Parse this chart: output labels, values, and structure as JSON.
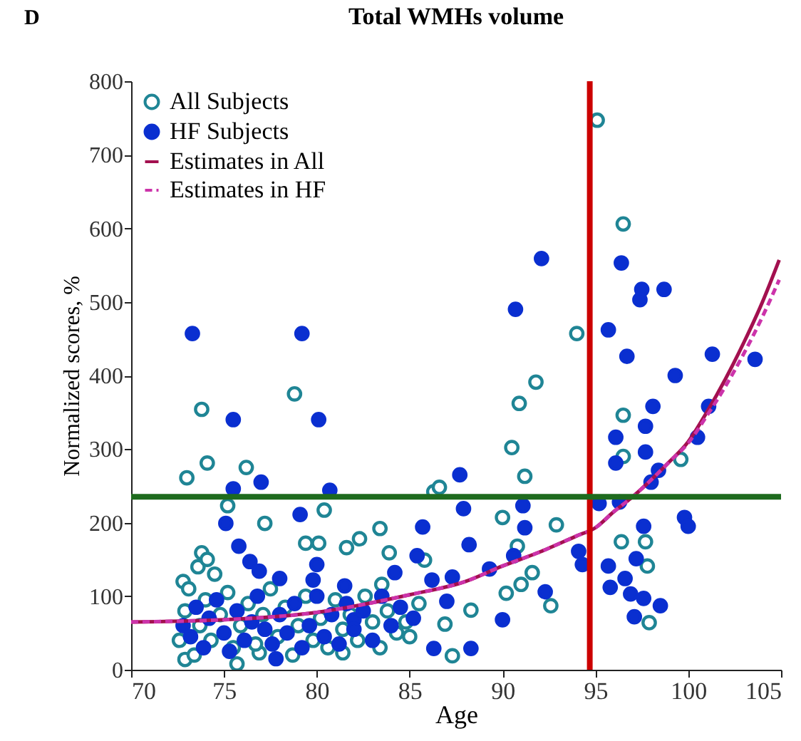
{
  "chart_data": {
    "type": "scatter",
    "title": "Total WMHs volume",
    "xlabel": "Age",
    "ylabel": "Normalized scores, %",
    "annotations": [
      "D"
    ],
    "xlim": [
      70,
      105
    ],
    "xticks": [
      70,
      75,
      80,
      85,
      90,
      95,
      100,
      105
    ],
    "ylim": [
      0,
      800
    ],
    "yticks": [
      0,
      100,
      200,
      300,
      400,
      500,
      600,
      700,
      800
    ],
    "grid": false,
    "legend": "top left",
    "ref_lines": [
      {
        "axis": "x",
        "value": 94.7,
        "color": "#cc0000"
      },
      {
        "axis": "y",
        "value": 235,
        "color": "#1e6b1e"
      }
    ],
    "series": [
      {
        "name": "All Subjects",
        "marker": "circle",
        "color": "#1f8595",
        "x": [
          95.1,
          96.5,
          94.0,
          91.8,
          90.9,
          90.5,
          91.2,
          96.5,
          96.5,
          99.6,
          92.9,
          90.0,
          96.4,
          97.7,
          97.8,
          91.6,
          91.0,
          90.2,
          92.6,
          88.3,
          86.9,
          87.3,
          97.9,
          90.8,
          73.8,
          78.8,
          73.0,
          74.1,
          76.2,
          75.2,
          77.2,
          80.4,
          79.4,
          80.1,
          81.6,
          82.3,
          83.4,
          83.9,
          85.8,
          86.3,
          86.6,
          73.8,
          72.8,
          83.5,
          81.4,
          75.7,
          76.9,
          72.9,
          85.0,
          72.6,
          72.9,
          73.1,
          73.4,
          73.7,
          74.0,
          74.3,
          74.5,
          74.8,
          75.2,
          75.5,
          75.9,
          76.3,
          76.7,
          77.1,
          77.5,
          77.9,
          78.3,
          78.7,
          79.0,
          79.4,
          79.8,
          80.2,
          80.6,
          81.0,
          81.4,
          81.8,
          82.2,
          82.6,
          83.0,
          83.4,
          83.8,
          84.3,
          84.8,
          85.5,
          73.6,
          74.1
        ],
        "values": [
          747,
          606,
          457,
          391,
          362,
          302,
          263,
          346,
          290,
          286,
          197,
          207,
          174,
          174,
          141,
          132,
          116,
          104,
          87,
          81,
          62,
          19,
          64,
          168,
          354,
          375,
          261,
          281,
          275,
          223,
          199,
          217,
          172,
          172,
          166,
          178,
          192,
          159,
          149,
          242,
          248,
          159,
          120,
          116,
          23,
          8,
          23,
          14,
          45,
          40,
          80,
          110,
          20,
          60,
          95,
          40,
          130,
          75,
          105,
          30,
          60,
          90,
          35,
          75,
          110,
          45,
          85,
          20,
          60,
          100,
          40,
          70,
          30,
          95,
          55,
          75,
          40,
          100,
          65,
          30,
          80,
          50,
          65,
          90,
          140,
          150
        ]
      },
      {
        "name": "HF Subjects",
        "marker": "circle",
        "color": "#0a2fd0",
        "x": [
          73.3,
          79.2,
          75.5,
          80.1,
          75.5,
          77.0,
          80.7,
          75.1,
          79.1,
          75.8,
          76.4,
          76.9,
          78.0,
          79.8,
          80.0,
          81.5,
          84.2,
          85.7,
          86.2,
          86.3,
          77.8,
          82.0,
          85.4,
          92.1,
          90.7,
          96.4,
          97.5,
          98.7,
          97.4,
          95.7,
          96.7,
          99.3,
          101.3,
          103.6,
          101.1,
          98.1,
          97.7,
          96.1,
          97.7,
          96.1,
          100.5,
          98.4,
          98.0,
          96.3,
          95.2,
          91.1,
          87.7,
          87.9,
          91.2,
          88.2,
          99.8,
          100.0,
          97.6,
          94.1,
          94.3,
          95.7,
          97.2,
          89.3,
          90.6,
          87.3,
          96.6,
          95.8,
          96.9,
          97.6,
          98.5,
          97.1,
          92.3,
          90.0,
          87.0,
          88.3,
          72.8,
          73.2,
          73.5,
          73.9,
          74.2,
          74.6,
          75.0,
          75.3,
          75.7,
          76.1,
          76.5,
          76.8,
          77.2,
          77.6,
          78.0,
          78.4,
          78.8,
          79.2,
          79.6,
          80.0,
          80.4,
          80.8,
          81.2,
          81.6,
          82.0,
          82.5,
          83.0,
          83.5,
          84.0,
          84.5,
          85.2
        ],
        "values": [
          457,
          457,
          340,
          340,
          246,
          255,
          244,
          199,
          211,
          168,
          147,
          134,
          124,
          122,
          143,
          114,
          132,
          194,
          122,
          29,
          15,
          68,
          155,
          559,
          490,
          553,
          517,
          517,
          503,
          462,
          426,
          400,
          429,
          422,
          358,
          358,
          331,
          316,
          296,
          281,
          316,
          271,
          255,
          228,
          226,
          223,
          265,
          219,
          193,
          170,
          207,
          195,
          195,
          161,
          143,
          141,
          151,
          137,
          155,
          126,
          124,
          112,
          103,
          97,
          87,
          72,
          106,
          68,
          93,
          29,
          60,
          45,
          85,
          30,
          70,
          95,
          50,
          25,
          80,
          40,
          65,
          100,
          55,
          35,
          75,
          50,
          90,
          30,
          60,
          100,
          45,
          75,
          35,
          90,
          55,
          80,
          40,
          100,
          60,
          85,
          70
        ]
      },
      {
        "name": "Estimates in All",
        "type": "line",
        "line_style": "solid",
        "color": "#a3104f",
        "x": [
          70,
          75,
          80,
          85,
          88,
          90,
          92,
          94,
          95,
          96,
          97,
          98,
          99,
          100,
          101,
          102,
          103,
          104,
          104.9
        ],
        "values": [
          65,
          68,
          78,
          102,
          120,
          141,
          160,
          182,
          193,
          215,
          235,
          258,
          283,
          310,
          350,
          395,
          445,
          500,
          557
        ]
      },
      {
        "name": "Estimates in HF",
        "type": "line",
        "line_style": "dashed",
        "color": "#cc33aa",
        "x": [
          70,
          75,
          80,
          85,
          88,
          90,
          92,
          94,
          95,
          96,
          97,
          98,
          99,
          100,
          101,
          102,
          103,
          104,
          104.9
        ],
        "values": [
          65,
          68,
          78,
          102,
          120,
          141,
          160,
          182,
          193,
          215,
          235,
          258,
          283,
          308,
          345,
          385,
          430,
          480,
          530
        ]
      }
    ]
  }
}
